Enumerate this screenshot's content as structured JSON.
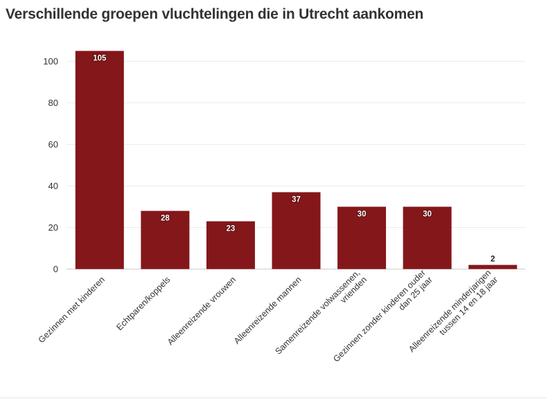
{
  "title": "Verschillende groepen vluchtelingen die in Utrecht aankomen",
  "colors": {
    "bar": "#84171a",
    "grid": "#ececec",
    "axis": "#cccccc",
    "text": "#333333"
  },
  "chart_data": {
    "type": "bar",
    "title": "Verschillende groepen vluchtelingen die in Utrecht aankomen",
    "xlabel": "",
    "ylabel": "",
    "ylim": [
      0,
      110
    ],
    "yticks": [
      0,
      20,
      40,
      60,
      80,
      100
    ],
    "grid": true,
    "categories": [
      [
        "Gezinnen met kinderen"
      ],
      [
        "Echtparen/koppels"
      ],
      [
        "Alleenreizende vrouwen"
      ],
      [
        "Alleenreizende mannen"
      ],
      [
        "Samenreizende volwassenen,",
        "vrienden"
      ],
      [
        "Gezinnen zonder kinderen ouder",
        "dan 25 jaar"
      ],
      [
        "Alleenreizende minderjarigen",
        "tussen 14 en 18 jaar"
      ]
    ],
    "values": [
      105,
      28,
      23,
      37,
      30,
      30,
      2
    ]
  }
}
